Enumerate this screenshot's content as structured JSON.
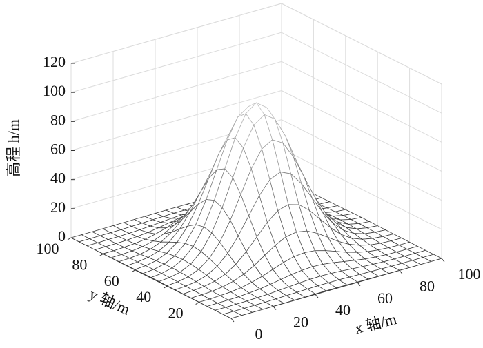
{
  "chart_data": {
    "type": "surface",
    "zlabel": "高程 h/m",
    "xlabel": "x 轴/m",
    "ylabel": "y 轴/m",
    "xlim": [
      0,
      100
    ],
    "ylim": [
      0,
      100
    ],
    "zlim": [
      0,
      120
    ],
    "xticks": [
      0,
      20,
      40,
      60,
      80,
      100
    ],
    "yticks": [
      20,
      40,
      60,
      80,
      100
    ],
    "zticks": [
      0,
      20,
      40,
      60,
      80,
      100,
      120
    ],
    "grid": true,
    "x": [
      0,
      5,
      10,
      15,
      20,
      25,
      30,
      35,
      40,
      45,
      50,
      55,
      60,
      65,
      70,
      75,
      80,
      85,
      90,
      95,
      100
    ],
    "y": [
      0,
      5,
      10,
      15,
      20,
      25,
      30,
      35,
      40,
      45,
      50,
      55,
      60,
      65,
      70,
      75,
      80,
      85,
      90,
      95,
      100
    ],
    "z": [
      [
        0,
        0,
        0,
        0,
        0.1,
        0.1,
        0.2,
        0.2,
        0.3,
        0.4,
        0.4,
        0.4,
        0.3,
        0.2,
        0.2,
        0.1,
        0.1,
        0,
        0,
        0,
        0
      ],
      [
        0,
        0,
        0,
        0.1,
        0.1,
        0.3,
        0.5,
        0.7,
        0.9,
        1.1,
        1.1,
        1.1,
        0.9,
        0.7,
        0.5,
        0.3,
        0.1,
        0.1,
        0,
        0,
        0
      ],
      [
        0,
        0,
        0.1,
        0.2,
        0.4,
        0.7,
        1.2,
        1.7,
        2.3,
        2.7,
        2.9,
        2.7,
        2.3,
        1.7,
        1.2,
        0.7,
        0.4,
        0.2,
        0.1,
        0,
        0
      ],
      [
        0,
        0.1,
        0.2,
        0.4,
        0.9,
        1.6,
        2.7,
        4.0,
        5.3,
        6.2,
        6.6,
        6.2,
        5.3,
        4.0,
        2.7,
        1.6,
        0.9,
        0.4,
        0.2,
        0.1,
        0
      ],
      [
        0.1,
        0.1,
        0.4,
        0.9,
        1.8,
        3.4,
        5.5,
        8.2,
        10.8,
        12.8,
        13.5,
        12.8,
        10.8,
        8.2,
        5.5,
        3.4,
        1.8,
        0.9,
        0.4,
        0.1,
        0.1
      ],
      [
        0.1,
        0.3,
        0.7,
        1.6,
        3.4,
        6.2,
        10.2,
        15.1,
        19.9,
        23.6,
        24.9,
        23.6,
        19.9,
        15.1,
        10.2,
        6.2,
        3.4,
        1.6,
        0.7,
        0.3,
        0.1
      ],
      [
        0.2,
        0.5,
        1.2,
        2.7,
        5.5,
        10.2,
        16.9,
        24.9,
        32.9,
        38.9,
        41.1,
        38.9,
        32.9,
        24.9,
        16.9,
        10.2,
        5.5,
        2.7,
        1.2,
        0.5,
        0.2
      ],
      [
        0.2,
        0.7,
        1.7,
        4.0,
        8.2,
        15.1,
        24.9,
        36.8,
        48.6,
        57.4,
        60.7,
        57.4,
        48.6,
        36.8,
        24.9,
        15.1,
        8.2,
        4.0,
        1.7,
        0.7,
        0.2
      ],
      [
        0.3,
        0.9,
        2.3,
        5.3,
        10.8,
        19.9,
        32.9,
        48.6,
        64.2,
        75.8,
        80.1,
        75.8,
        64.2,
        48.6,
        32.9,
        19.9,
        10.8,
        5.3,
        2.3,
        0.9,
        0.3
      ],
      [
        0.4,
        1.1,
        2.7,
        6.2,
        12.8,
        23.6,
        38.9,
        57.4,
        75.8,
        89.5,
        94.6,
        89.5,
        75.8,
        57.4,
        38.9,
        23.6,
        12.8,
        6.2,
        2.7,
        1.1,
        0.4
      ],
      [
        0.4,
        1.1,
        2.9,
        6.6,
        13.5,
        24.9,
        41.1,
        60.7,
        80.1,
        94.6,
        100,
        94.6,
        80.1,
        60.7,
        41.1,
        24.9,
        13.5,
        6.6,
        2.9,
        1.1,
        0.4
      ],
      [
        0.4,
        1.1,
        2.7,
        6.2,
        12.8,
        23.6,
        38.9,
        57.4,
        75.8,
        89.5,
        94.6,
        89.5,
        75.8,
        57.4,
        38.9,
        23.6,
        12.8,
        6.2,
        2.7,
        1.1,
        0.4
      ],
      [
        0.3,
        0.9,
        2.3,
        5.3,
        10.8,
        19.9,
        32.9,
        48.6,
        64.2,
        75.8,
        80.1,
        75.8,
        64.2,
        48.6,
        32.9,
        19.9,
        10.8,
        5.3,
        2.3,
        0.9,
        0.3
      ],
      [
        0.2,
        0.7,
        1.7,
        4.0,
        8.2,
        15.1,
        24.9,
        36.8,
        48.6,
        57.4,
        60.7,
        57.4,
        48.6,
        36.8,
        24.9,
        15.1,
        8.2,
        4.0,
        1.7,
        0.7,
        0.2
      ],
      [
        0.2,
        0.5,
        1.2,
        2.7,
        5.5,
        10.2,
        16.9,
        24.9,
        32.9,
        38.9,
        41.1,
        38.9,
        32.9,
        24.9,
        16.9,
        10.2,
        5.5,
        2.7,
        1.2,
        0.5,
        0.2
      ],
      [
        0.1,
        0.3,
        0.7,
        1.6,
        3.4,
        6.2,
        10.2,
        15.1,
        19.9,
        23.6,
        24.9,
        23.6,
        19.9,
        15.1,
        10.2,
        6.2,
        3.4,
        1.6,
        0.7,
        0.3,
        0.1
      ],
      [
        0.1,
        0.1,
        0.4,
        0.9,
        1.8,
        3.4,
        5.5,
        8.2,
        10.8,
        12.8,
        13.5,
        12.8,
        10.8,
        8.2,
        5.5,
        3.4,
        1.8,
        0.9,
        0.4,
        0.1,
        0.1
      ],
      [
        0,
        0.1,
        0.2,
        0.4,
        0.9,
        1.6,
        2.7,
        4.0,
        5.3,
        6.2,
        6.6,
        6.2,
        5.3,
        4.0,
        2.7,
        1.6,
        0.9,
        0.4,
        0.2,
        0.1,
        0
      ],
      [
        0,
        0,
        0.1,
        0.2,
        0.4,
        0.7,
        1.2,
        1.7,
        2.3,
        2.7,
        2.9,
        2.7,
        2.3,
        1.7,
        1.2,
        0.7,
        0.4,
        0.2,
        0.1,
        0,
        0
      ],
      [
        0,
        0,
        0,
        0.1,
        0.1,
        0.3,
        0.5,
        0.7,
        0.9,
        1.1,
        1.1,
        1.1,
        0.9,
        0.7,
        0.5,
        0.3,
        0.1,
        0.1,
        0,
        0,
        0
      ],
      [
        0,
        0,
        0,
        0,
        0.1,
        0.1,
        0.2,
        0.2,
        0.3,
        0.4,
        0.4,
        0.4,
        0.3,
        0.2,
        0.2,
        0.1,
        0.1,
        0,
        0,
        0,
        0
      ]
    ]
  }
}
